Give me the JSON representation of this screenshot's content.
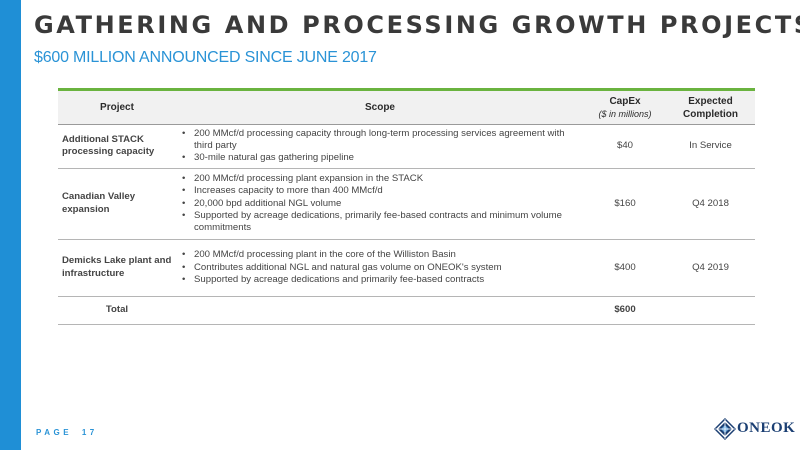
{
  "slide": {
    "title": "GATHERING AND PROCESSING GROWTH PROJECTS",
    "subtitle": "$600 MILLION ANNOUNCED SINCE JUNE 2017",
    "page_word": "PAGE",
    "page_number": "17",
    "logo_text": "ONEOK"
  },
  "colors": {
    "accent_blue": "#2a93d6",
    "left_bar": "#1f8fd6",
    "table_rule_green": "#6ab33f",
    "logo_navy": "#1b3f73"
  },
  "table": {
    "headers": {
      "project": "Project",
      "scope": "Scope",
      "capex": "CapEx",
      "capex_sub": "($ in millions)",
      "completion": "Expected Completion"
    },
    "rows": [
      {
        "project": "Additional STACK processing capacity",
        "scope": [
          "200 MMcf/d processing capacity through long-term processing services agreement with third party",
          "30-mile natural gas gathering pipeline"
        ],
        "capex": "$40",
        "completion": "In Service"
      },
      {
        "project": "Canadian Valley expansion",
        "scope": [
          "200 MMcf/d processing plant expansion in the STACK",
          "Increases capacity to more than 400 MMcf/d",
          "20,000 bpd additional NGL volume",
          "Supported by acreage dedications, primarily fee-based contracts and minimum volume commitments"
        ],
        "capex": "$160",
        "completion": "Q4 2018"
      },
      {
        "project": "Demicks Lake plant and infrastructure",
        "scope": [
          "200 MMcf/d processing plant in the core of the Williston Basin",
          "Contributes additional NGL and natural gas volume on ONEOK's system",
          "Supported by acreage dedications and primarily fee-based contracts"
        ],
        "capex": "$400",
        "completion": "Q4 2019"
      }
    ],
    "total": {
      "label": "Total",
      "capex": "$600"
    }
  },
  "icons": {
    "logo_mark": "oneok-diamond-logo-icon"
  }
}
